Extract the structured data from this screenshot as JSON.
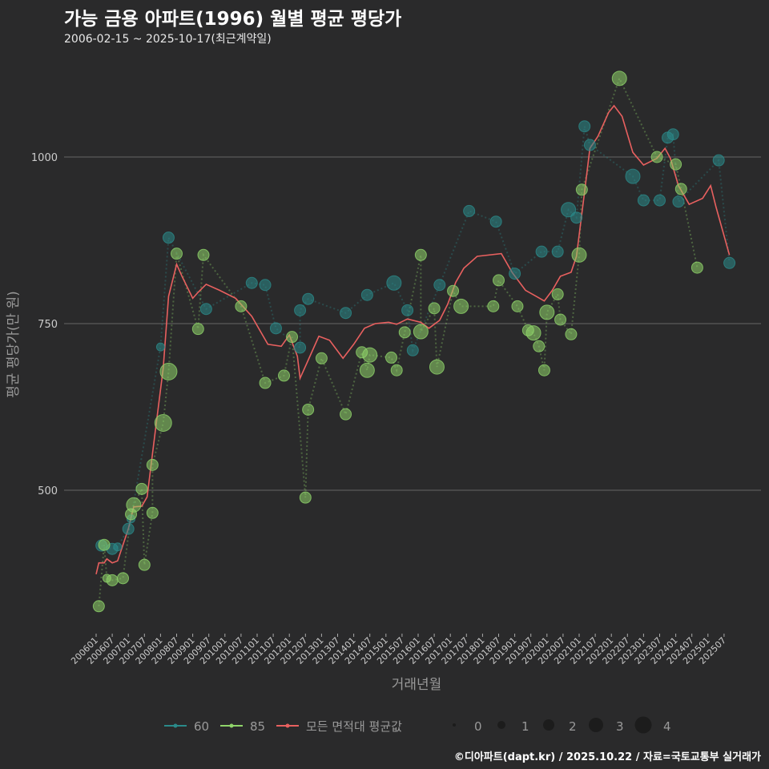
{
  "title": "가능 금용 아파트(1996) 월별 평균 평당가",
  "subtitle": "2006-02-15 ~ 2025-10-17(최근계약일)",
  "footer": "©디아파트(dapt.kr) / 2025.10.22 / 자료=국토교통부 실거래가",
  "chart_data": {
    "type": "line+scatter",
    "xlabel": "거래년월",
    "ylabel": "평균 평당가(만 원)",
    "x_unit": "months since 2006-01",
    "xlim": [
      0,
      237
    ],
    "ylim": [
      300,
      1150
    ],
    "yticks": [
      500,
      750,
      1000
    ],
    "xticks": [
      "200601",
      "200607",
      "200701",
      "200707",
      "200801",
      "200807",
      "200901",
      "200907",
      "201001",
      "201007",
      "201101",
      "201107",
      "201201",
      "201207",
      "201301",
      "201307",
      "201401",
      "201407",
      "201501",
      "201507",
      "201601",
      "201607",
      "201701",
      "201707",
      "201801",
      "201807",
      "201901",
      "201907",
      "202001",
      "202007",
      "202101",
      "202107",
      "202201",
      "202207",
      "202301",
      "202307",
      "202401",
      "202407",
      "202501",
      "202507"
    ],
    "grid": true,
    "colors": {
      "60": "#2a8a8a",
      "85": "#8fd46a",
      "avg": "#e8605f"
    },
    "legend": {
      "placement": "bottom",
      "series": [
        "60",
        "85",
        "모든 면적대 평균값"
      ],
      "size_title": "",
      "sizes": [
        "0",
        "1",
        "2",
        "3",
        "4"
      ]
    },
    "series": [
      {
        "name": "60",
        "points": [
          [
            2,
            417,
            2
          ],
          [
            6,
            412,
            2
          ],
          [
            8,
            415,
            1
          ],
          [
            12,
            442,
            2
          ],
          [
            13,
            457,
            1
          ],
          [
            24,
            715,
            1
          ],
          [
            27,
            879,
            2
          ],
          [
            41,
            772,
            2
          ],
          [
            58,
            811,
            2
          ],
          [
            63,
            808,
            2
          ],
          [
            67,
            743,
            2
          ],
          [
            76,
            714,
            2
          ],
          [
            76,
            770,
            2
          ],
          [
            79,
            787,
            2
          ],
          [
            93,
            766,
            2
          ],
          [
            101,
            793,
            2
          ],
          [
            111,
            811,
            3
          ],
          [
            116,
            770,
            2
          ],
          [
            118,
            710,
            2
          ],
          [
            128,
            808,
            2
          ],
          [
            139,
            919,
            2
          ],
          [
            149,
            903,
            2
          ],
          [
            156,
            825,
            2
          ],
          [
            166,
            858,
            2
          ],
          [
            172,
            858,
            2
          ],
          [
            176,
            921,
            3
          ],
          [
            179,
            909,
            2
          ],
          [
            182,
            1046,
            2
          ],
          [
            184,
            1018,
            2
          ],
          [
            200,
            971,
            3
          ],
          [
            204,
            935,
            2
          ],
          [
            210,
            935,
            2
          ],
          [
            213,
            1029,
            2
          ],
          [
            215,
            1034,
            2
          ],
          [
            217,
            933,
            2
          ],
          [
            232,
            995,
            2
          ],
          [
            236,
            841,
            2
          ]
        ]
      },
      {
        "name": "85",
        "points": [
          [
            1,
            326,
            2
          ],
          [
            3,
            418,
            2
          ],
          [
            4,
            368,
            1
          ],
          [
            6,
            365,
            2
          ],
          [
            10,
            368,
            2
          ],
          [
            13,
            464,
            2
          ],
          [
            14,
            478,
            3
          ],
          [
            17,
            502,
            2
          ],
          [
            18,
            388,
            2
          ],
          [
            21,
            466,
            2
          ],
          [
            21,
            538,
            2
          ],
          [
            25,
            601,
            4
          ],
          [
            27,
            678,
            4
          ],
          [
            30,
            855,
            2
          ],
          [
            38,
            742,
            2
          ],
          [
            40,
            853,
            2
          ],
          [
            54,
            776,
            2
          ],
          [
            63,
            661,
            2
          ],
          [
            70,
            672,
            2
          ],
          [
            73,
            730,
            2
          ],
          [
            78,
            489,
            2
          ],
          [
            79,
            621,
            2
          ],
          [
            84,
            698,
            2
          ],
          [
            93,
            614,
            2
          ],
          [
            99,
            707,
            2
          ],
          [
            101,
            680,
            3
          ],
          [
            102,
            703,
            3
          ],
          [
            110,
            699,
            2
          ],
          [
            112,
            680,
            2
          ],
          [
            115,
            737,
            2
          ],
          [
            121,
            853,
            2
          ],
          [
            121,
            738,
            3
          ],
          [
            126,
            773,
            2
          ],
          [
            127,
            685,
            3
          ],
          [
            133,
            799,
            2
          ],
          [
            136,
            776,
            3
          ],
          [
            148,
            776,
            2
          ],
          [
            150,
            815,
            2
          ],
          [
            157,
            776,
            2
          ],
          [
            161,
            740,
            2
          ],
          [
            163,
            736,
            3
          ],
          [
            165,
            716,
            2
          ],
          [
            167,
            680,
            2
          ],
          [
            168,
            767,
            3
          ],
          [
            172,
            794,
            2
          ],
          [
            173,
            756,
            2
          ],
          [
            177,
            734,
            2
          ],
          [
            180,
            853,
            3
          ],
          [
            181,
            951,
            2
          ],
          [
            195,
            1118,
            3
          ],
          [
            209,
            1000,
            2
          ],
          [
            216,
            989,
            2
          ],
          [
            218,
            952,
            2
          ],
          [
            224,
            834,
            2
          ]
        ]
      },
      {
        "name": "모든 면적대 평균값",
        "points": [
          [
            0,
            374
          ],
          [
            1,
            391
          ],
          [
            3,
            391
          ],
          [
            4,
            397
          ],
          [
            6,
            391
          ],
          [
            8,
            394
          ],
          [
            12,
            442
          ],
          [
            14,
            475
          ],
          [
            17,
            476
          ],
          [
            19,
            490
          ],
          [
            22,
            587
          ],
          [
            25,
            683
          ],
          [
            27,
            791
          ],
          [
            30,
            839
          ],
          [
            32,
            821
          ],
          [
            36,
            788
          ],
          [
            38,
            797
          ],
          [
            41,
            809
          ],
          [
            46,
            800
          ],
          [
            52,
            788
          ],
          [
            58,
            761
          ],
          [
            64,
            719
          ],
          [
            69,
            716
          ],
          [
            72,
            733
          ],
          [
            75,
            701
          ],
          [
            76,
            668
          ],
          [
            79,
            695
          ],
          [
            83,
            731
          ],
          [
            87,
            725
          ],
          [
            92,
            698
          ],
          [
            96,
            719
          ],
          [
            100,
            743
          ],
          [
            104,
            750
          ],
          [
            109,
            752
          ],
          [
            112,
            749
          ],
          [
            116,
            757
          ],
          [
            121,
            752
          ],
          [
            124,
            743
          ],
          [
            128,
            755
          ],
          [
            131,
            779
          ],
          [
            134,
            812
          ],
          [
            137,
            833
          ],
          [
            142,
            851
          ],
          [
            151,
            855
          ],
          [
            155,
            827
          ],
          [
            160,
            800
          ],
          [
            164,
            791
          ],
          [
            167,
            784
          ],
          [
            170,
            800
          ],
          [
            173,
            821
          ],
          [
            177,
            827
          ],
          [
            179,
            851
          ],
          [
            182,
            947
          ],
          [
            184,
            1013
          ],
          [
            187,
            1031
          ],
          [
            191,
            1067
          ],
          [
            193,
            1077
          ],
          [
            196,
            1061
          ],
          [
            200,
            1007
          ],
          [
            204,
            988
          ],
          [
            209,
            998
          ],
          [
            212,
            1013
          ],
          [
            214,
            998
          ],
          [
            217,
            957
          ],
          [
            221,
            929
          ],
          [
            226,
            938
          ],
          [
            229,
            957
          ],
          [
            231,
            925
          ],
          [
            236,
            853
          ]
        ]
      }
    ]
  }
}
